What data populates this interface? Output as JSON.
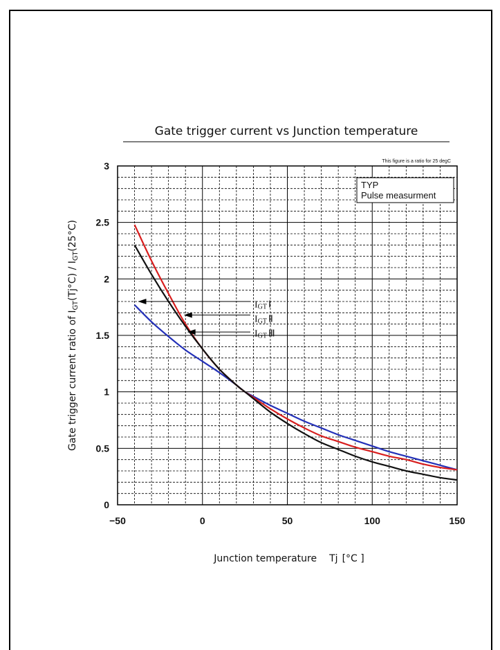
{
  "colors": {
    "igt1": "#2330b8",
    "igt2": "#d81e1e",
    "igt3": "#111111",
    "grid": "#000000"
  },
  "chart_data": {
    "type": "line",
    "title": "Gate trigger current vs Junction temperature",
    "note": "This figure is a ratio for 25 degC",
    "xlabel": "Junction temperature",
    "xlabel_symbol": "Tj",
    "xlabel_unit": "[°C ]",
    "ylabel": "Gate trigger current ratio of I",
    "ylabel_sub1": "GT",
    "ylabel_mid": "(Tj°C) / I",
    "ylabel_sub2": "GT",
    "ylabel_end": "(25°C)",
    "xlim": [
      -50,
      150
    ],
    "ylim": [
      0,
      3
    ],
    "xticks": [
      -50,
      0,
      50,
      100,
      150
    ],
    "yticks": [
      0,
      0.5,
      1,
      1.5,
      2,
      2.5,
      3
    ],
    "xtick_labels": [
      "−50",
      "0",
      "50",
      "100",
      "150"
    ],
    "ytick_labels": [
      "0",
      "0.5",
      "1",
      "1.5",
      "2",
      "2.5",
      "3"
    ],
    "grid": true,
    "legend_box": {
      "line1": "TYP",
      "line2": "Pulse measurment",
      "position": "top-right"
    },
    "series": [
      {
        "name": "IGT I",
        "color_key": "igt1",
        "x": [
          -40,
          -30,
          -20,
          -10,
          0,
          10,
          20,
          25,
          30,
          40,
          50,
          60,
          70,
          80,
          90,
          100,
          110,
          120,
          130,
          140,
          150
        ],
        "y": [
          1.77,
          1.62,
          1.49,
          1.37,
          1.27,
          1.17,
          1.06,
          1.0,
          0.96,
          0.88,
          0.81,
          0.74,
          0.68,
          0.62,
          0.57,
          0.52,
          0.47,
          0.43,
          0.39,
          0.35,
          0.31
        ]
      },
      {
        "name": "IGT II",
        "color_key": "igt2",
        "x": [
          -40,
          -30,
          -20,
          -10,
          0,
          10,
          20,
          25,
          30,
          40,
          50,
          60,
          70,
          80,
          90,
          100,
          110,
          120,
          130,
          140,
          150
        ],
        "y": [
          2.48,
          2.16,
          1.87,
          1.6,
          1.38,
          1.2,
          1.06,
          1.0,
          0.95,
          0.85,
          0.76,
          0.68,
          0.61,
          0.56,
          0.51,
          0.47,
          0.43,
          0.4,
          0.36,
          0.33,
          0.31
        ]
      },
      {
        "name": "IGT III",
        "color_key": "igt3",
        "x": [
          -40,
          -30,
          -20,
          -10,
          0,
          10,
          20,
          25,
          30,
          40,
          50,
          60,
          70,
          80,
          90,
          100,
          110,
          120,
          130,
          140,
          150
        ],
        "y": [
          2.3,
          2.04,
          1.8,
          1.58,
          1.38,
          1.2,
          1.06,
          1.0,
          0.94,
          0.82,
          0.72,
          0.63,
          0.55,
          0.49,
          0.43,
          0.38,
          0.34,
          0.3,
          0.27,
          0.24,
          0.22
        ]
      }
    ],
    "annotations": [
      {
        "label": "I",
        "sub": "GT",
        "roman": "Ⅰ",
        "series": 0,
        "arrow_x": -38,
        "arrow_y": 1.8,
        "text_y": 1.78
      },
      {
        "label": "I",
        "sub": "GT",
        "roman": "Ⅱ",
        "series": 1,
        "arrow_x": -11,
        "arrow_y": 1.68,
        "text_y": 1.65
      },
      {
        "label": "I",
        "sub": "GT",
        "roman": "Ⅲ",
        "series": 2,
        "arrow_x": -9,
        "arrow_y": 1.53,
        "text_y": 1.52
      }
    ]
  }
}
